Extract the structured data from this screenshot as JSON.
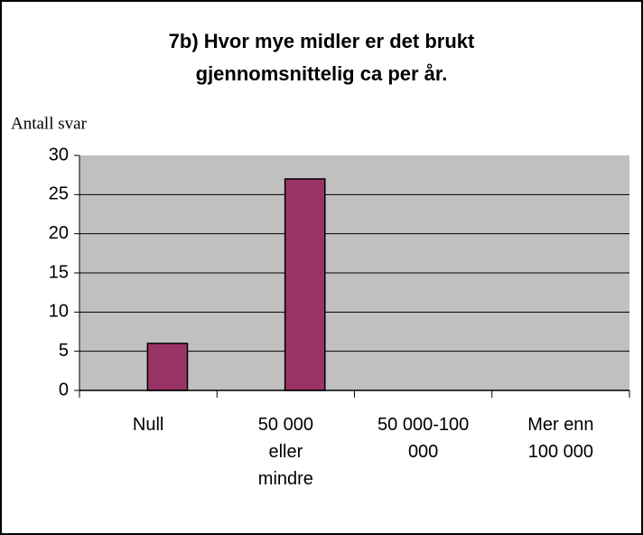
{
  "chart_data": {
    "type": "bar",
    "title": [
      "7b) Hvor mye midler er det brukt",
      "gjennomsnittelig ca per år."
    ],
    "y_label": "Antall svar",
    "categories": [
      "Null",
      "50 000 eller mindre",
      "50 000-100 000",
      "Mer enn 100 000"
    ],
    "values": [
      6,
      27,
      0,
      0
    ],
    "color": "#993366",
    "ylim": [
      0,
      30
    ],
    "yticks": [
      0,
      5,
      10,
      15,
      20,
      25,
      30
    ],
    "grid": true
  }
}
